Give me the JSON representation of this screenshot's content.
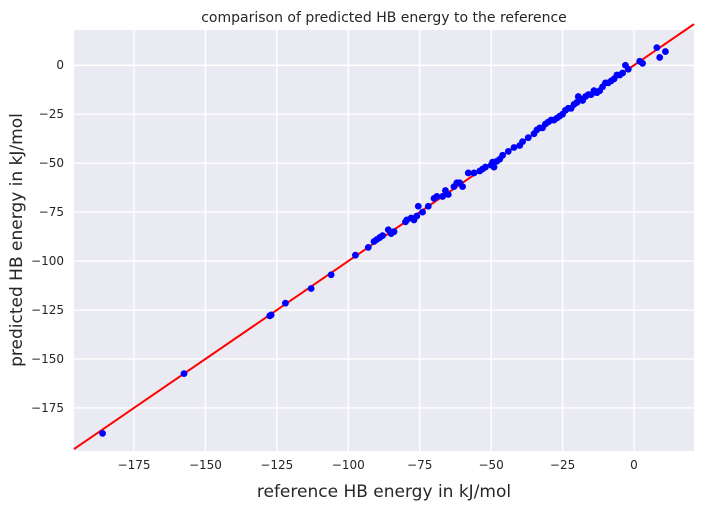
{
  "chart_data": {
    "type": "scatter",
    "title": "comparison of predicted HB energy to the reference",
    "xlabel": "reference HB energy in kJ/mol",
    "ylabel": "predicted HB energy in kJ/mol",
    "xlim": [
      -196,
      21
    ],
    "ylim": [
      -197,
      18
    ],
    "x_ticks": [
      -175,
      -150,
      -125,
      -100,
      -75,
      -50,
      -25,
      0
    ],
    "y_ticks": [
      0,
      -25,
      -50,
      -75,
      -100,
      -125,
      -150,
      -175
    ],
    "x_tick_labels": [
      "−175",
      "−150",
      "−125",
      "−100",
      "−75",
      "−50",
      "−25",
      "0"
    ],
    "y_tick_labels": [
      "0",
      "−25",
      "−50",
      "−75",
      "−100",
      "−125",
      "−150",
      "−175"
    ],
    "grid": true,
    "background_color": "#eaeaf2",
    "point_color": "#0000ff",
    "line_color": "#ff0000",
    "reference_line": {
      "x": [
        -196,
        21
      ],
      "y": [
        -196,
        21
      ]
    },
    "points": {
      "x": [
        -186,
        -157.5,
        -127.5,
        -127,
        -122,
        -113,
        -106,
        -97.5,
        -93,
        -91,
        -90,
        -89,
        -88,
        -86,
        -85,
        -84,
        -80,
        -79.5,
        -78,
        -77,
        -76,
        -75.5,
        -74,
        -72,
        -70,
        -69,
        -67,
        -66,
        -65,
        -63,
        -62,
        -61,
        -60,
        -58,
        -56,
        -54,
        -53,
        -52,
        -50,
        -49.5,
        -49,
        -48,
        -47,
        -46,
        -44,
        -42,
        -40,
        -39,
        -37,
        -35,
        -34,
        -33,
        -32,
        -31,
        -30,
        -29,
        -28,
        -27,
        -26,
        -25,
        -24,
        -23,
        -22,
        -21,
        -20,
        -19.5,
        -19,
        -18,
        -17,
        -16,
        -15,
        -14,
        -13,
        -12,
        -11,
        -10,
        -9,
        -8,
        -7,
        -6,
        -5,
        -4,
        -3,
        -2,
        2,
        3,
        8,
        9,
        11
      ],
      "y": [
        -188,
        -157.5,
        -128,
        -127.5,
        -121.5,
        -114,
        -107,
        -97,
        -93,
        -90,
        -89,
        -88,
        -87,
        -84,
        -86,
        -85,
        -80,
        -79,
        -78,
        -79,
        -77,
        -72,
        -75,
        -72,
        -68,
        -67,
        -67,
        -64,
        -66,
        -62,
        -60,
        -60,
        -62,
        -55,
        -55,
        -54,
        -53,
        -52,
        -51,
        -49.5,
        -52,
        -49,
        -48,
        -46,
        -44,
        -42,
        -41,
        -39,
        -37,
        -35,
        -33,
        -32,
        -32,
        -30,
        -29,
        -28,
        -28,
        -27,
        -26,
        -25,
        -23,
        -22,
        -22,
        -20,
        -19,
        -16,
        -17,
        -18,
        -16,
        -15,
        -15,
        -13,
        -14,
        -13,
        -11,
        -9,
        -9,
        -8,
        -7,
        -5,
        -5,
        -4,
        0,
        -2,
        2,
        1,
        9,
        4,
        7
      ]
    }
  }
}
